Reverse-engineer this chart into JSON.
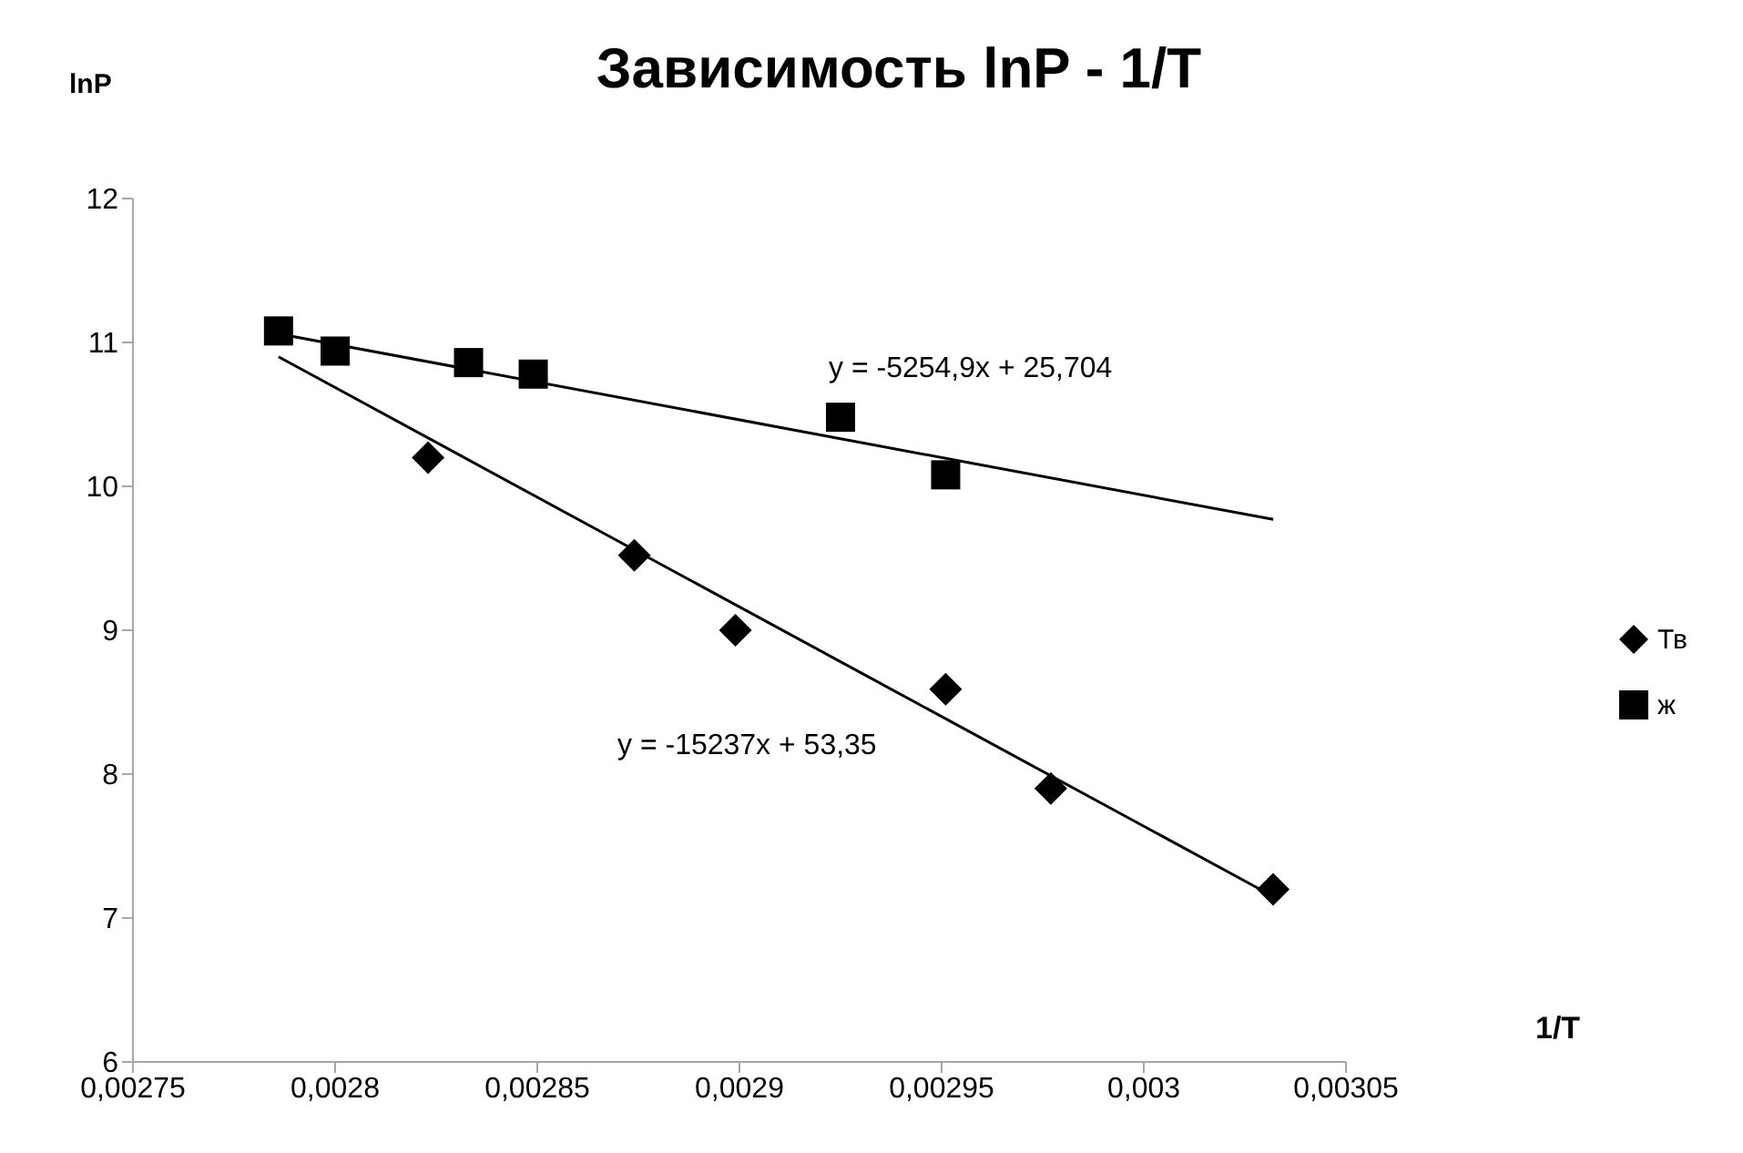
{
  "chart_data": {
    "type": "scatter",
    "title": "Зависимость lnP - 1/T",
    "xlabel": "1/T",
    "ylabel": "lnP",
    "series": [
      {
        "name": "Тв",
        "color": "#000000",
        "marker": "diamond",
        "x": [
          0.002823,
          0.002874,
          0.002899,
          0.002951,
          0.002977,
          0.003032
        ],
        "values": [
          10.2,
          9.52,
          9.0,
          8.59,
          7.9,
          7.2
        ]
      },
      {
        "name": "ж",
        "color": "#000000",
        "marker": "square",
        "x": [
          0.002786,
          0.0028,
          0.002833,
          0.002849,
          0.002925,
          0.002951
        ],
        "values": [
          11.08,
          10.94,
          10.86,
          10.78,
          10.48,
          10.08
        ]
      },
      {
        "type": "line",
        "color": "#000000",
        "x": [
          0.002786,
          0.003032
        ],
        "values": [
          10.9,
          7.15
        ]
      },
      {
        "type": "line",
        "color": "#000000",
        "x": [
          0.002786,
          0.003032
        ],
        "values": [
          11.06,
          9.77
        ]
      }
    ],
    "annotations": [
      "y = -5254,9x + 25,704",
      "y = -15237x + 53,35"
    ],
    "xlim": [
      0.00275,
      0.00305
    ],
    "xticks": [
      {
        "value": 0.00275,
        "label": "0,00275"
      },
      {
        "value": 0.0028,
        "label": "0,0028"
      },
      {
        "value": 0.00285,
        "label": "0,00285"
      },
      {
        "value": 0.0029,
        "label": "0,0029"
      },
      {
        "value": 0.00295,
        "label": "0,00295"
      },
      {
        "value": 0.003,
        "label": "0,003"
      },
      {
        "value": 0.00305,
        "label": "0,00305"
      }
    ],
    "ylim": [
      6,
      12
    ],
    "yticks": [
      6,
      7,
      8,
      9,
      10,
      11,
      12
    ],
    "grid": false,
    "legend": "right"
  }
}
